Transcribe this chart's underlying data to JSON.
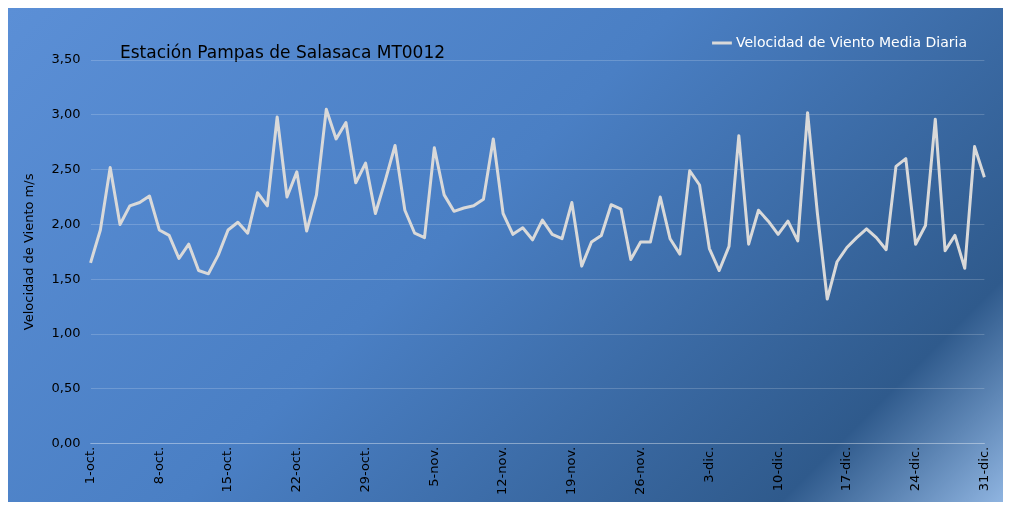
{
  "chart_data": {
    "type": "line",
    "title": "Estación Pampas de Salasaca MT0012",
    "ylabel": "Velocidad de Viento m/s",
    "categories": [
      "1-oct.",
      null,
      null,
      null,
      null,
      null,
      null,
      "8-oct.",
      null,
      null,
      null,
      null,
      null,
      null,
      "15-oct.",
      null,
      null,
      null,
      null,
      null,
      null,
      "22-oct.",
      null,
      null,
      null,
      null,
      null,
      null,
      "29-oct.",
      null,
      null,
      null,
      null,
      null,
      null,
      "5-nov.",
      null,
      null,
      null,
      null,
      null,
      null,
      "12-nov.",
      null,
      null,
      null,
      null,
      null,
      null,
      "19-nov.",
      null,
      null,
      null,
      null,
      null,
      null,
      "26-nov.",
      null,
      null,
      null,
      null,
      null,
      null,
      "3-dic.",
      null,
      null,
      null,
      null,
      null,
      null,
      "10-dic.",
      null,
      null,
      null,
      null,
      null,
      null,
      "17-dic.",
      null,
      null,
      null,
      null,
      null,
      null,
      "24-dic.",
      null,
      null,
      null,
      null,
      null,
      null,
      "31-dic."
    ],
    "series": [
      {
        "name": "Velocidad de Viento Media Diaria",
        "color": "#d9d9d9",
        "values": [
          1.65,
          1.95,
          2.52,
          2.0,
          2.17,
          2.2,
          2.26,
          1.95,
          1.9,
          1.69,
          1.82,
          1.58,
          1.55,
          1.72,
          1.95,
          2.02,
          1.92,
          2.29,
          2.17,
          2.98,
          2.25,
          2.48,
          1.94,
          2.27,
          3.05,
          2.78,
          2.93,
          2.38,
          2.56,
          2.1,
          2.4,
          2.72,
          2.13,
          1.92,
          1.88,
          2.7,
          2.27,
          2.12,
          2.15,
          2.17,
          2.23,
          2.78,
          2.1,
          1.91,
          1.97,
          1.86,
          2.04,
          1.91,
          1.87,
          2.2,
          1.62,
          1.84,
          1.9,
          2.18,
          2.14,
          1.68,
          1.84,
          1.84,
          2.25,
          1.87,
          1.73,
          2.49,
          2.36,
          1.78,
          1.58,
          1.8,
          2.81,
          1.82,
          2.13,
          2.03,
          1.91,
          2.03,
          1.85,
          3.02,
          2.1,
          1.32,
          1.66,
          1.79,
          1.88,
          1.96,
          1.88,
          1.77,
          2.53,
          2.6,
          1.82,
          1.99,
          2.96,
          1.76,
          1.9,
          1.6,
          2.71,
          2.43
        ]
      }
    ],
    "ylim": [
      0,
      3.5
    ],
    "yticks": [
      {
        "value": 0,
        "label": "0,00"
      },
      {
        "value": 0.5,
        "label": "0,50"
      },
      {
        "value": 1,
        "label": "1,00"
      },
      {
        "value": 1.5,
        "label": "1,50"
      },
      {
        "value": 2,
        "label": "2,00"
      },
      {
        "value": 2.5,
        "label": "2,50"
      },
      {
        "value": 3,
        "label": "3,00"
      },
      {
        "value": 3.5,
        "label": "3,50"
      }
    ],
    "grid": "y",
    "legend": "top right",
    "marker": "none",
    "line_style": "solid"
  }
}
